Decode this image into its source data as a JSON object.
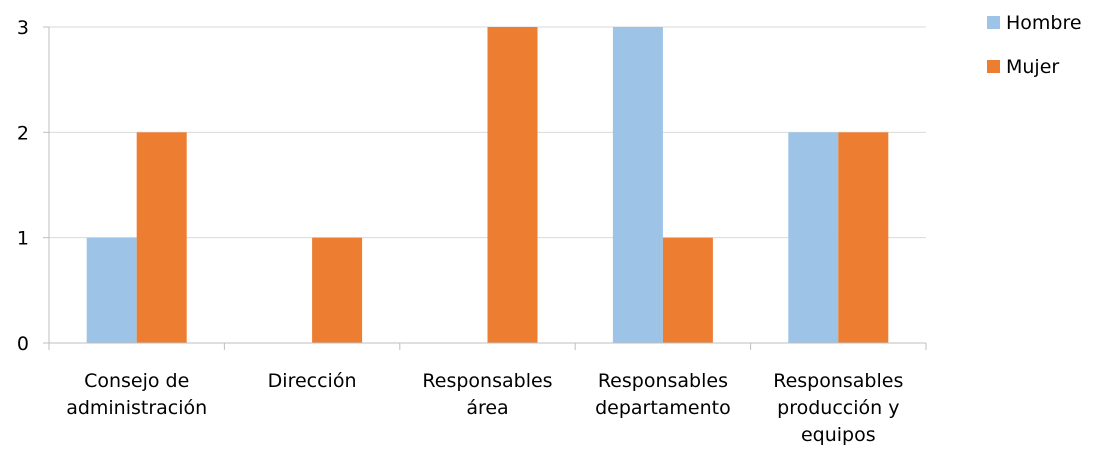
{
  "chart_data": {
    "type": "bar",
    "categories": [
      [
        "Consejo de",
        "administración"
      ],
      [
        "Dirección"
      ],
      [
        "Responsables",
        "área"
      ],
      [
        "Responsables",
        "departamento"
      ],
      [
        "Responsables",
        "producción y",
        "equipos"
      ]
    ],
    "series": [
      {
        "name": "Hombre",
        "color": "#9DC3E6",
        "values": [
          1,
          0,
          0,
          3,
          2
        ]
      },
      {
        "name": "Mujer",
        "color": "#ED7D31",
        "values": [
          2,
          1,
          3,
          1,
          2
        ]
      }
    ],
    "ylim": [
      0,
      3
    ],
    "yticks": [
      0,
      1,
      2,
      3
    ],
    "grid": true,
    "legend": "top-right"
  }
}
